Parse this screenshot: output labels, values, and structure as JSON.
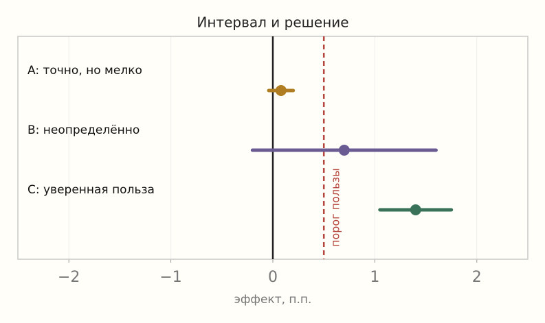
{
  "chart_data": {
    "type": "interval",
    "title": "Интервал и решение",
    "xlabel": "эффект, п.п.",
    "categories": [
      "A: точно, но мелко",
      "B: неопределённо",
      "C: уверенная польза"
    ],
    "values": [
      0.08,
      0.7,
      1.4
    ],
    "lower": [
      -0.04,
      -0.2,
      1.05
    ],
    "upper": [
      0.2,
      1.6,
      1.75
    ],
    "colors": [
      "#b07d22",
      "#6b5b93",
      "#3a7259"
    ],
    "xlim": [
      -2.5,
      2.5
    ],
    "xticks": [
      {
        "value": -2,
        "label": "−2"
      },
      {
        "value": -1,
        "label": "−1"
      },
      0,
      1,
      2
    ],
    "grid": true,
    "reference_lines": [
      {
        "value": 0,
        "color": "#222222",
        "style": "solid"
      },
      {
        "value": 0.5,
        "color": "#b5453a",
        "style": "dashed",
        "label": "порог пользы"
      }
    ]
  }
}
